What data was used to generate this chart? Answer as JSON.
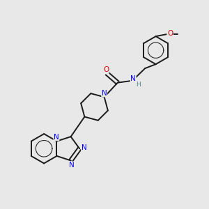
{
  "background_color": "#e8e8e8",
  "bond_color": "#1a1a1a",
  "nitrogen_color": "#0000ff",
  "oxygen_color": "#cc0000",
  "hydrogen_color": "#4a8888",
  "bond_width": 1.4,
  "font_size": 7.5,
  "fig_size": [
    3.0,
    3.0
  ],
  "dpi": 100,
  "xlim": [
    0,
    10
  ],
  "ylim": [
    0,
    10
  ]
}
